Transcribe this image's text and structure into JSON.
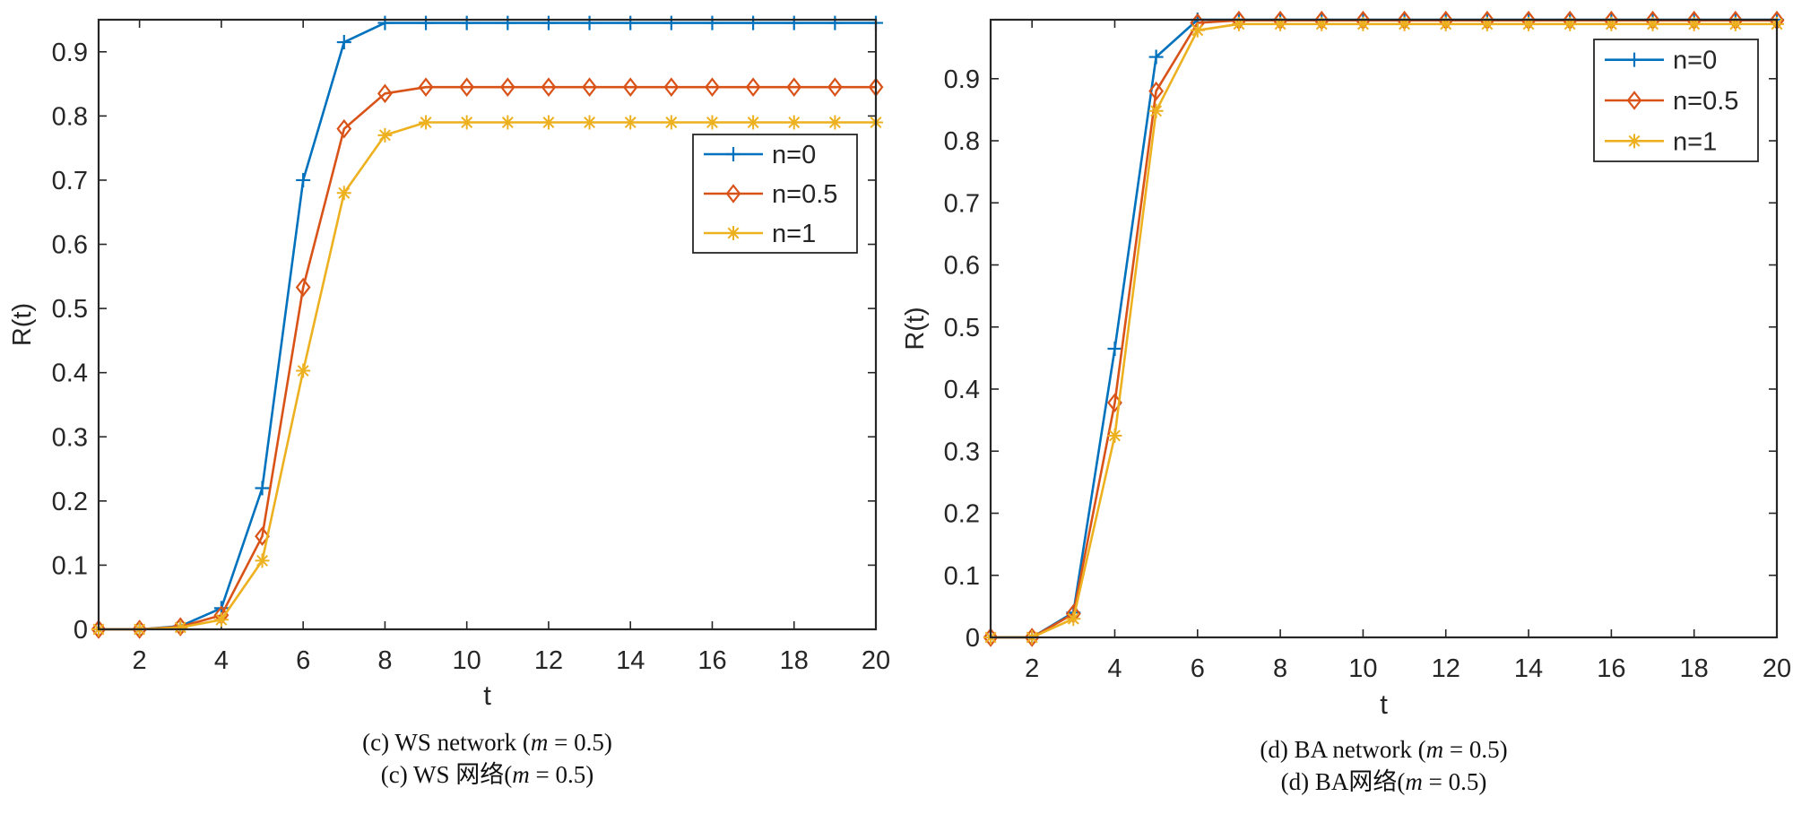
{
  "chart_data": [
    {
      "type": "line",
      "xlabel": "t",
      "ylabel": "R(t)",
      "xlim": [
        1,
        20
      ],
      "ylim": [
        0,
        0.95
      ],
      "xticks": [
        "2",
        "4",
        "6",
        "8",
        "10",
        "12",
        "14",
        "16",
        "18",
        "20"
      ],
      "yticks": [
        "0",
        "0.1",
        "0.2",
        "0.3",
        "0.4",
        "0.5",
        "0.6",
        "0.7",
        "0.8",
        "0.9"
      ],
      "legend_position": "right",
      "x": [
        1,
        2,
        3,
        4,
        5,
        6,
        7,
        8,
        9,
        10,
        11,
        12,
        13,
        14,
        15,
        16,
        17,
        18,
        19,
        20
      ],
      "series": [
        {
          "name": "n=0",
          "color": "#0072BD",
          "marker": "plus",
          "values": [
            0,
            0,
            0.005,
            0.033,
            0.22,
            0.7,
            0.915,
            0.945,
            0.945,
            0.945,
            0.945,
            0.945,
            0.945,
            0.945,
            0.945,
            0.945,
            0.945,
            0.945,
            0.945,
            0.945
          ]
        },
        {
          "name": "n=0.5",
          "color": "#D95319",
          "marker": "diamond",
          "values": [
            0,
            0,
            0.004,
            0.022,
            0.145,
            0.533,
            0.78,
            0.835,
            0.845,
            0.845,
            0.845,
            0.845,
            0.845,
            0.845,
            0.845,
            0.845,
            0.845,
            0.845,
            0.845,
            0.845
          ]
        },
        {
          "name": "n=1",
          "color": "#EDB120",
          "marker": "star",
          "values": [
            0,
            0,
            0.003,
            0.015,
            0.107,
            0.403,
            0.68,
            0.77,
            0.79,
            0.79,
            0.79,
            0.79,
            0.79,
            0.79,
            0.79,
            0.79,
            0.79,
            0.79,
            0.79,
            0.79
          ]
        }
      ],
      "caption_en": {
        "prefix": "(c) WS network  (",
        "var": "m",
        "suffix": " = 0.5)"
      },
      "caption_cn": {
        "prefix": "(c) WS 网络(",
        "var": "m",
        "suffix": " = 0.5)"
      }
    },
    {
      "type": "line",
      "xlabel": "t",
      "ylabel": "R(t)",
      "xlim": [
        1,
        20
      ],
      "ylim": [
        0,
        0.995
      ],
      "xticks": [
        "2",
        "4",
        "6",
        "8",
        "10",
        "12",
        "14",
        "16",
        "18",
        "20"
      ],
      "yticks": [
        "0",
        "0.1",
        "0.2",
        "0.3",
        "0.4",
        "0.5",
        "0.6",
        "0.7",
        "0.8",
        "0.9"
      ],
      "legend_position": "top-right",
      "x": [
        1,
        2,
        3,
        4,
        5,
        6,
        7,
        8,
        9,
        10,
        11,
        12,
        13,
        14,
        15,
        16,
        17,
        18,
        19,
        20
      ],
      "series": [
        {
          "name": "n=0",
          "color": "#0072BD",
          "marker": "plus",
          "values": [
            0,
            0,
            0.04,
            0.465,
            0.935,
            0.995,
            0.995,
            0.995,
            0.995,
            0.995,
            0.995,
            0.995,
            0.995,
            0.995,
            0.995,
            0.995,
            0.995,
            0.995,
            0.995,
            0.995
          ]
        },
        {
          "name": "n=0.5",
          "color": "#D95319",
          "marker": "diamond",
          "values": [
            0,
            0,
            0.038,
            0.378,
            0.88,
            0.99,
            0.994,
            0.994,
            0.994,
            0.994,
            0.994,
            0.994,
            0.994,
            0.994,
            0.994,
            0.994,
            0.994,
            0.994,
            0.994,
            0.994
          ]
        },
        {
          "name": "n=1",
          "color": "#EDB120",
          "marker": "star",
          "values": [
            0,
            0,
            0.03,
            0.325,
            0.848,
            0.978,
            0.988,
            0.988,
            0.988,
            0.988,
            0.988,
            0.988,
            0.988,
            0.988,
            0.988,
            0.988,
            0.988,
            0.988,
            0.988,
            0.988
          ]
        }
      ],
      "caption_en": {
        "prefix": "(d) BA network  (",
        "var": "m",
        "suffix": " = 0.5)"
      },
      "caption_cn": {
        "prefix": "(d) BA网络(",
        "var": "m",
        "suffix": " = 0.5)"
      }
    }
  ]
}
